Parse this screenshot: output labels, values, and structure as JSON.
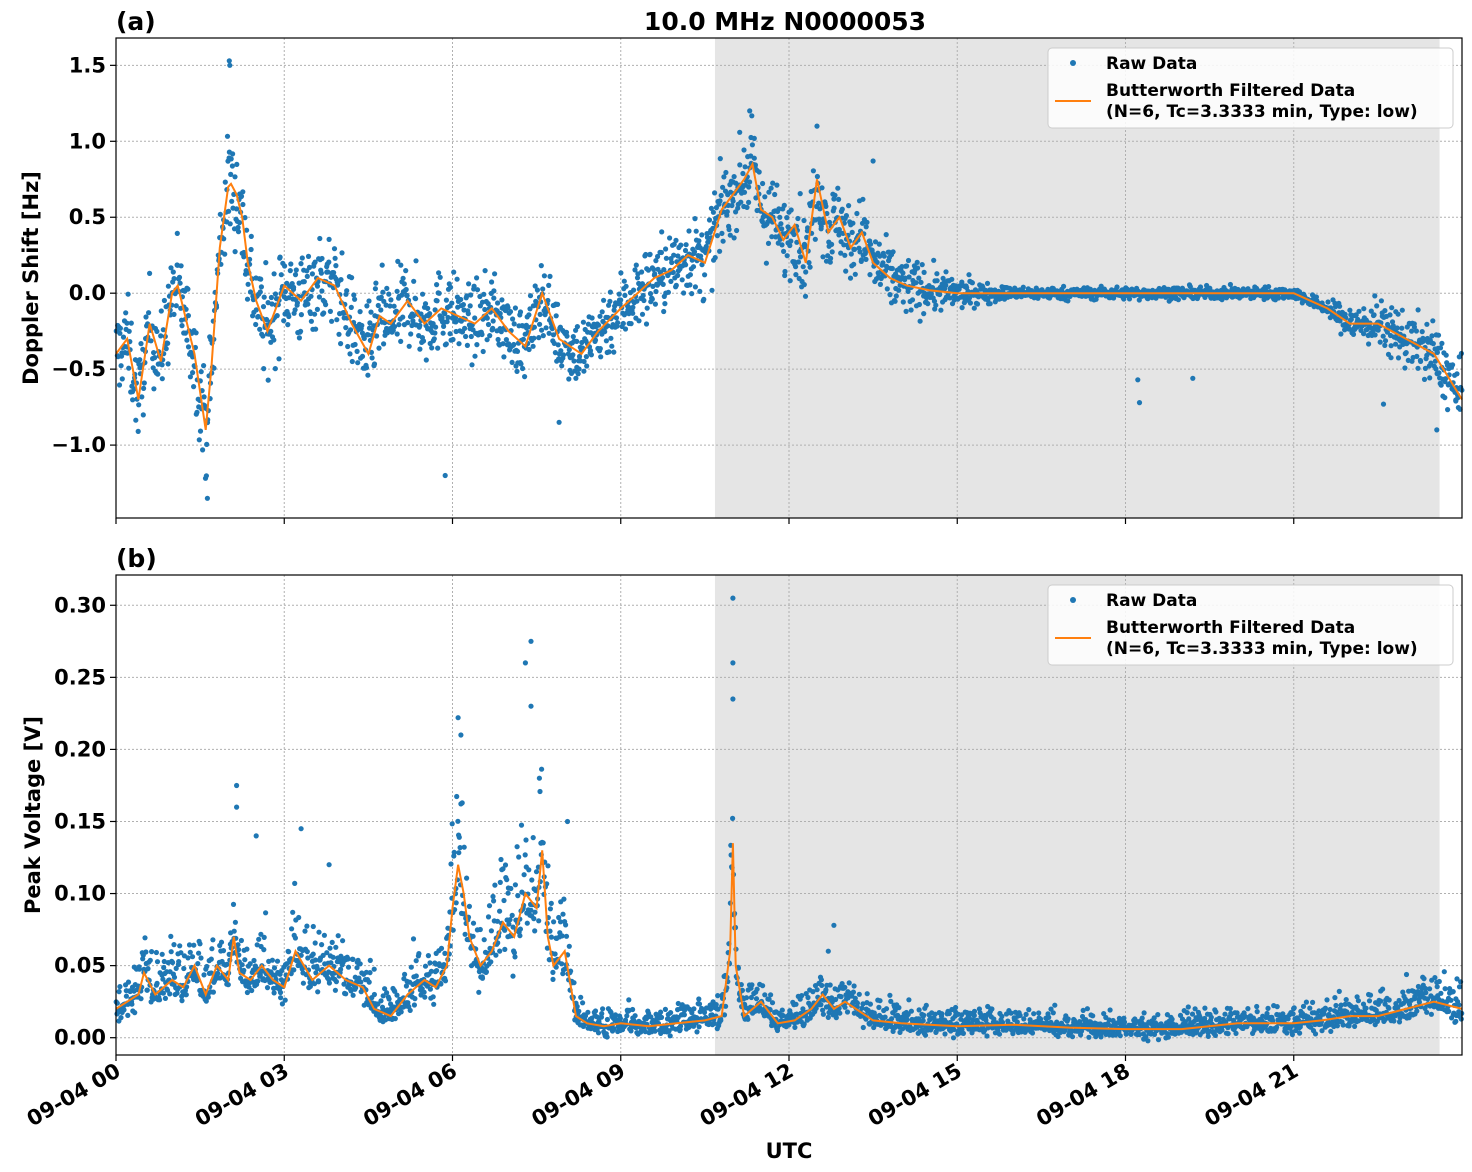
{
  "chart_data": [
    {
      "type": "scatter",
      "panel_label": "(a)",
      "title": "10.0 MHz N0000053",
      "ylabel": "Doppler Shift [Hz]",
      "xlabel": "",
      "x_unit": "hours UTC since 09-04 00",
      "xlim": [
        0,
        24
      ],
      "ylim": [
        -1.48,
        1.68
      ],
      "yticks": [
        1.5,
        1.0,
        0.5,
        0.0,
        -0.5,
        -1.0
      ],
      "ytick_labels": [
        "1.5",
        "1.0",
        "0.5",
        "0.0",
        "−0.5",
        "−1.0"
      ],
      "xticks": [
        0,
        3,
        6,
        9,
        12,
        15,
        18,
        21
      ],
      "shaded_region": [
        10.68,
        23.6
      ],
      "grid": true,
      "legend_position": "top-right",
      "legend": [
        "Raw Data",
        "Butterworth Filtered Data",
        "(N=6, Tc=3.3333 min, Type: low)"
      ],
      "series": [
        {
          "name": "Raw Data",
          "style": "points",
          "color": "#1f77b4",
          "spread_hz": [
            [
              0,
              0.28
            ],
            [
              1.4,
              0.3
            ],
            [
              2.1,
              0.35
            ],
            [
              3,
              0.3
            ],
            [
              5,
              0.28
            ],
            [
              7,
              0.22
            ],
            [
              8,
              0.22
            ],
            [
              9,
              0.24
            ],
            [
              10,
              0.25
            ],
            [
              11,
              0.25
            ],
            [
              12.5,
              0.28
            ],
            [
              14,
              0.2
            ],
            [
              15,
              0.1
            ],
            [
              15.6,
              0.06
            ],
            [
              16,
              0.04
            ],
            [
              21.5,
              0.04
            ],
            [
              22,
              0.12
            ],
            [
              23,
              0.18
            ],
            [
              24,
              0.22
            ]
          ],
          "outliers": [
            [
              2.02,
              1.53
            ],
            [
              2.03,
              1.5
            ],
            [
              11.3,
              1.2
            ],
            [
              12.5,
              1.1
            ],
            [
              13.5,
              0.87
            ],
            [
              1.63,
              -1.35
            ],
            [
              5.87,
              -1.2
            ],
            [
              18.25,
              -0.72
            ],
            [
              18.22,
              -0.57
            ],
            [
              19.2,
              -0.56
            ],
            [
              22.6,
              -0.73
            ],
            [
              23.55,
              -0.9
            ],
            [
              7.9,
              -0.85
            ]
          ]
        },
        {
          "name": "Butterworth Filtered Data",
          "style": "line",
          "color": "#ff7f0e",
          "x": [
            0,
            0.2,
            0.4,
            0.6,
            0.8,
            1.0,
            1.1,
            1.2,
            1.4,
            1.6,
            1.7,
            1.85,
            2.0,
            2.05,
            2.15,
            2.25,
            2.35,
            2.5,
            2.7,
            3.0,
            3.3,
            3.6,
            3.9,
            4.2,
            4.5,
            4.7,
            4.9,
            5.2,
            5.5,
            5.8,
            6.1,
            6.4,
            6.7,
            7.0,
            7.3,
            7.6,
            7.9,
            8.1,
            8.3,
            8.6,
            9.0,
            9.3,
            9.6,
            9.9,
            10.2,
            10.5,
            10.8,
            11.0,
            11.2,
            11.35,
            11.5,
            11.7,
            11.9,
            12.1,
            12.3,
            12.5,
            12.7,
            12.9,
            13.1,
            13.3,
            13.5,
            13.8,
            14.1,
            14.5,
            15.0,
            15.5,
            16.0,
            17.0,
            18.0,
            19.0,
            20.0,
            21.0,
            21.3,
            21.6,
            22.0,
            22.5,
            23.0,
            23.5,
            24.0
          ],
          "y": [
            -0.4,
            -0.3,
            -0.7,
            -0.2,
            -0.45,
            0.0,
            0.05,
            -0.1,
            -0.4,
            -0.9,
            -0.5,
            0.3,
            0.7,
            0.72,
            0.65,
            0.5,
            0.2,
            -0.05,
            -0.25,
            0.05,
            -0.05,
            0.1,
            0.05,
            -0.2,
            -0.4,
            -0.15,
            -0.2,
            -0.05,
            -0.2,
            -0.1,
            -0.15,
            -0.2,
            -0.1,
            -0.25,
            -0.35,
            0.0,
            -0.3,
            -0.35,
            -0.4,
            -0.25,
            -0.1,
            0.0,
            0.1,
            0.15,
            0.25,
            0.2,
            0.55,
            0.65,
            0.75,
            0.85,
            0.55,
            0.5,
            0.35,
            0.45,
            0.2,
            0.75,
            0.4,
            0.5,
            0.3,
            0.4,
            0.2,
            0.1,
            0.05,
            0.02,
            0.0,
            0.0,
            0.0,
            0.0,
            0.0,
            0.0,
            0.0,
            0.0,
            -0.05,
            -0.1,
            -0.2,
            -0.2,
            -0.3,
            -0.4,
            -0.7
          ]
        }
      ]
    },
    {
      "type": "scatter",
      "panel_label": "(b)",
      "title": "",
      "ylabel": "Peak Voltage [V]",
      "xlabel": "UTC",
      "x_unit": "hours UTC since 09-04 00",
      "xlim": [
        0,
        24
      ],
      "ylim": [
        -0.012,
        0.321
      ],
      "yticks": [
        0.3,
        0.25,
        0.2,
        0.15,
        0.1,
        0.05,
        0.0
      ],
      "ytick_labels": [
        "0.30",
        "0.25",
        "0.20",
        "0.15",
        "0.10",
        "0.05",
        "0.00"
      ],
      "xticks": [
        0,
        3,
        6,
        9,
        12,
        15,
        18,
        21
      ],
      "xtick_labels": [
        "09-04 00",
        "09-04 03",
        "09-04 06",
        "09-04 09",
        "09-04 12",
        "09-04 15",
        "09-04 18",
        "09-04 21"
      ],
      "shaded_region": [
        10.68,
        23.6
      ],
      "grid": true,
      "legend_position": "top-right",
      "legend": [
        "Raw Data",
        "Butterworth Filtered Data",
        "(N=6, Tc=3.3333 min, Type: low)"
      ],
      "series": [
        {
          "name": "Raw Data",
          "style": "points",
          "color": "#1f77b4",
          "outliers": [
            [
              2.15,
              0.175
            ],
            [
              2.15,
              0.16
            ],
            [
              2.5,
              0.14
            ],
            [
              3.3,
              0.145
            ],
            [
              3.8,
              0.12
            ],
            [
              6.1,
              0.222
            ],
            [
              6.15,
              0.21
            ],
            [
              7.3,
              0.26
            ],
            [
              7.4,
              0.275
            ],
            [
              7.4,
              0.23
            ],
            [
              7.55,
              0.18
            ],
            [
              8.05,
              0.15
            ],
            [
              11.0,
              0.305
            ],
            [
              11.0,
              0.26
            ],
            [
              11.0,
              0.235
            ],
            [
              12.8,
              0.078
            ],
            [
              12.7,
              0.06
            ]
          ]
        },
        {
          "name": "Butterworth Filtered Data",
          "style": "line",
          "color": "#ff7f0e",
          "x": [
            0,
            0.2,
            0.4,
            0.5,
            0.7,
            1.0,
            1.2,
            1.4,
            1.6,
            1.8,
            2.0,
            2.1,
            2.2,
            2.4,
            2.6,
            2.8,
            3.0,
            3.2,
            3.5,
            3.8,
            4.1,
            4.4,
            4.6,
            4.9,
            5.2,
            5.5,
            5.7,
            5.9,
            6.0,
            6.1,
            6.2,
            6.3,
            6.5,
            6.7,
            6.9,
            7.1,
            7.3,
            7.5,
            7.6,
            7.7,
            7.8,
            8.0,
            8.2,
            8.4,
            8.7,
            9.0,
            9.5,
            10.0,
            10.5,
            10.8,
            10.95,
            11.0,
            11.05,
            11.2,
            11.5,
            11.8,
            12.1,
            12.4,
            12.6,
            12.8,
            13.0,
            13.5,
            14.0,
            15.0,
            16.0,
            17.0,
            18.0,
            19.0,
            20.0,
            21.0,
            21.5,
            22.0,
            22.5,
            23.0,
            23.5,
            24.0
          ],
          "y": [
            0.02,
            0.025,
            0.03,
            0.045,
            0.03,
            0.04,
            0.035,
            0.05,
            0.03,
            0.05,
            0.04,
            0.07,
            0.045,
            0.04,
            0.05,
            0.04,
            0.035,
            0.06,
            0.04,
            0.05,
            0.04,
            0.035,
            0.02,
            0.015,
            0.03,
            0.04,
            0.035,
            0.05,
            0.09,
            0.12,
            0.1,
            0.07,
            0.05,
            0.06,
            0.08,
            0.07,
            0.1,
            0.09,
            0.13,
            0.07,
            0.05,
            0.06,
            0.015,
            0.01,
            0.008,
            0.01,
            0.008,
            0.01,
            0.012,
            0.015,
            0.06,
            0.135,
            0.05,
            0.015,
            0.025,
            0.01,
            0.012,
            0.02,
            0.03,
            0.02,
            0.025,
            0.012,
            0.01,
            0.008,
            0.009,
            0.007,
            0.006,
            0.006,
            0.01,
            0.01,
            0.012,
            0.015,
            0.015,
            0.02,
            0.025,
            0.02
          ]
        }
      ]
    }
  ]
}
